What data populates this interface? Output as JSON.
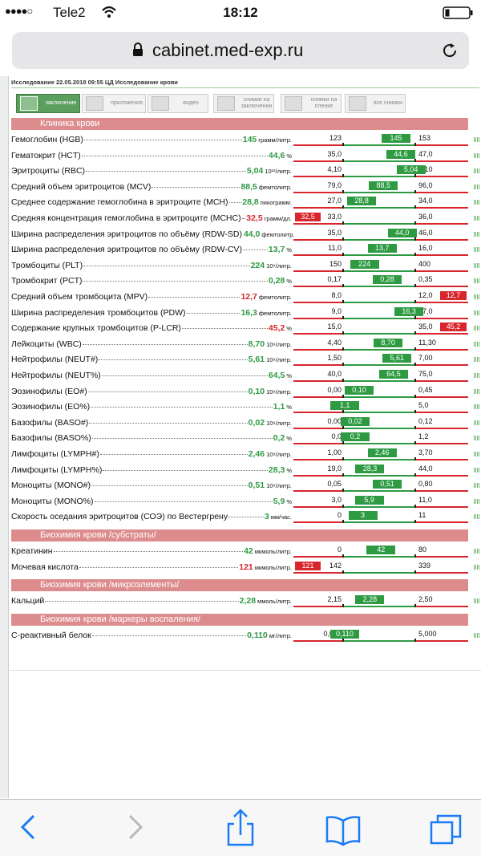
{
  "status_bar": {
    "carrier": "Tele2",
    "time": "18:12"
  },
  "address_bar": {
    "url": "cabinet.med-exp.ru"
  },
  "header": {
    "title": "Исследование 22.05.2018 09:55 ЦД Исследование крови"
  },
  "tabs": [
    "заключение",
    "приложения",
    "видео",
    "снимки на заключении",
    "снимки на пленке",
    "все снимки"
  ],
  "sections": [
    {
      "title": "Клиника крови",
      "rows": [
        {
          "name": "Гемоглобин (HGB)",
          "value": "145",
          "unit": "грамм/литр.",
          "low": "123",
          "high": "153"
        },
        {
          "name": "Гематокрит (HCT)",
          "value": "44,6",
          "unit": "%",
          "low": "35,0",
          "high": "47,0"
        },
        {
          "name": "Эритроциты (RBC)",
          "value": "5,04",
          "unit": "10¹²/литр.",
          "low": "4,10",
          "high": "5,10"
        },
        {
          "name": "Средний объем эритроцитов (MCV)",
          "value": "88,5",
          "unit": "фемтолитр.",
          "low": "79,0",
          "high": "96,0"
        },
        {
          "name": "Среднее содержание гемоглобина в эритроците (MCH)",
          "value": "28,8",
          "unit": "пикограмм.",
          "low": "27,0",
          "high": "34,0"
        },
        {
          "name": "Средняя концентрация гемоглобина в эритроците (MCHC)",
          "value": "32,5",
          "unit": "грамм/дл.",
          "low": "33,0",
          "high": "36,0"
        },
        {
          "name": "Ширина распределения эритроцитов по объёму (RDW-SD)",
          "value": "44,0",
          "unit": "фемтолитр.",
          "low": "35,0",
          "high": "46,0"
        },
        {
          "name": "Ширина распределения эритроцитов по объёму (RDW-CV)",
          "value": "13,7",
          "unit": "%",
          "low": "11,0",
          "high": "16,0"
        },
        {
          "name": "Тромбоциты (PLT)",
          "value": "224",
          "unit": "10⁹/литр.",
          "low": "150",
          "high": "400"
        },
        {
          "name": "Тромбокрит (PCT)",
          "value": "0,28",
          "unit": "%",
          "low": "0,17",
          "high": "0,35"
        },
        {
          "name": "Средний объем тромбоцита (MPV)",
          "value": "12,7",
          "unit": "фемтолитр.",
          "low": "8,0",
          "high": "12,0"
        },
        {
          "name": "Ширина распределения тромбоцитов (PDW)",
          "value": "16,3",
          "unit": "фемтолитр.",
          "low": "9,0",
          "high": "17,0"
        },
        {
          "name": "Содержание крупных тромбоцитов (P-LCR)",
          "value": "45,2",
          "unit": "%",
          "low": "15,0",
          "high": "35,0"
        },
        {
          "name": "Лейкоциты (WBC)",
          "value": "8,70",
          "unit": "10⁹/литр.",
          "low": "4,40",
          "high": "11,30"
        },
        {
          "name": "Нейтрофилы (NEUT#)",
          "value": "5,61",
          "unit": "10⁹/литр.",
          "low": "1,50",
          "high": "7,00"
        },
        {
          "name": "Нейтрофилы (NEUT%)",
          "value": "64,5",
          "unit": "%",
          "low": "40,0",
          "high": "75,0"
        },
        {
          "name": "Эозинофилы (EO#)",
          "value": "0,10",
          "unit": "10⁹/литр.",
          "low": "0,00",
          "high": "0,45"
        },
        {
          "name": "Эозинофилы (EO%)",
          "value": "1,1",
          "unit": "%",
          "low": "1,0",
          "high": "5,0"
        },
        {
          "name": "Базофилы (BASO#)",
          "value": "0,02",
          "unit": "10⁹/литр.",
          "low": "0,00",
          "high": "0,12"
        },
        {
          "name": "Базофилы (BASO%)",
          "value": "0,2",
          "unit": "%",
          "low": "0,0",
          "high": "1,2"
        },
        {
          "name": "Лимфоциты (LYMPH#)",
          "value": "2,46",
          "unit": "10⁹/литр.",
          "low": "1,00",
          "high": "3,70"
        },
        {
          "name": "Лимфоциты (LYMPH%)",
          "value": "28,3",
          "unit": "%",
          "low": "19,0",
          "high": "44,0"
        },
        {
          "name": "Моноциты (MONO#)",
          "value": "0,51",
          "unit": "10⁹/литр.",
          "low": "0,05",
          "high": "0,80"
        },
        {
          "name": "Моноциты (MONO%)",
          "value": "5,9",
          "unit": "%",
          "low": "3,0",
          "high": "11,0"
        },
        {
          "name": "Скорость оседания эритроцитов (СОЭ) по Вестергрену",
          "value": "3",
          "unit": "мм/час.",
          "low": "0",
          "high": "11"
        }
      ]
    },
    {
      "title": "Биохимия крови /субстраты/",
      "rows": [
        {
          "name": "Креатинин",
          "value": "42",
          "unit": "мкмоль/литр.",
          "low": "0",
          "high": "80"
        },
        {
          "name": "Мочевая кислота",
          "value": "121",
          "unit": "мкмоль/литр.",
          "low": "142",
          "high": "339"
        }
      ]
    },
    {
      "title": "Биохимия крови /микроэлементы/",
      "rows": [
        {
          "name": "Кальций",
          "value": "2,28",
          "unit": "ммоль/литр.",
          "low": "2,15",
          "high": "2,50"
        }
      ]
    },
    {
      "title": "Биохимия крови /маркеры воспаления/",
      "rows": [
        {
          "name": "С-реактивный белок",
          "value": "0,110",
          "unit": "мг/литр.",
          "low": "0,000",
          "high": "5,000"
        }
      ]
    }
  ]
}
